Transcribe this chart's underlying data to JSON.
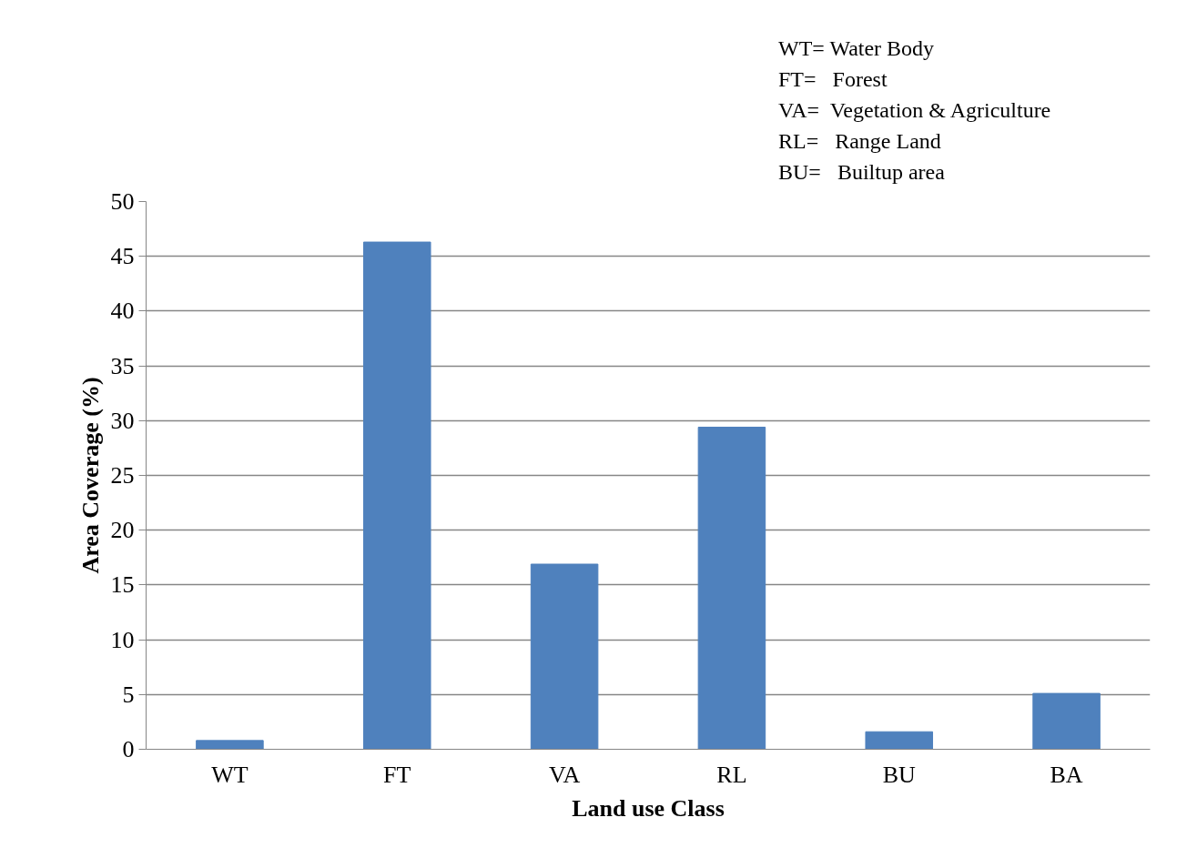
{
  "chart_data": {
    "type": "bar",
    "xlabel": "Land use Class",
    "ylabel": "Area Coverage (%)",
    "categories": [
      "WT",
      "FT",
      "VA",
      "RL",
      "BU",
      "BA"
    ],
    "values": [
      0.8,
      46.3,
      16.9,
      29.4,
      1.6,
      5.1
    ],
    "color": "#4f81bd",
    "ylim": [
      0,
      50
    ],
    "yticks": [
      0,
      5,
      10,
      15,
      20,
      25,
      30,
      35,
      40,
      45,
      50
    ],
    "grid": "y",
    "annotations": [
      "WT= Water Body",
      "FT=   Forest",
      "VA=  Vegetation & Agriculture",
      "RL=   Range Land",
      "BU=   Builtup area"
    ]
  }
}
